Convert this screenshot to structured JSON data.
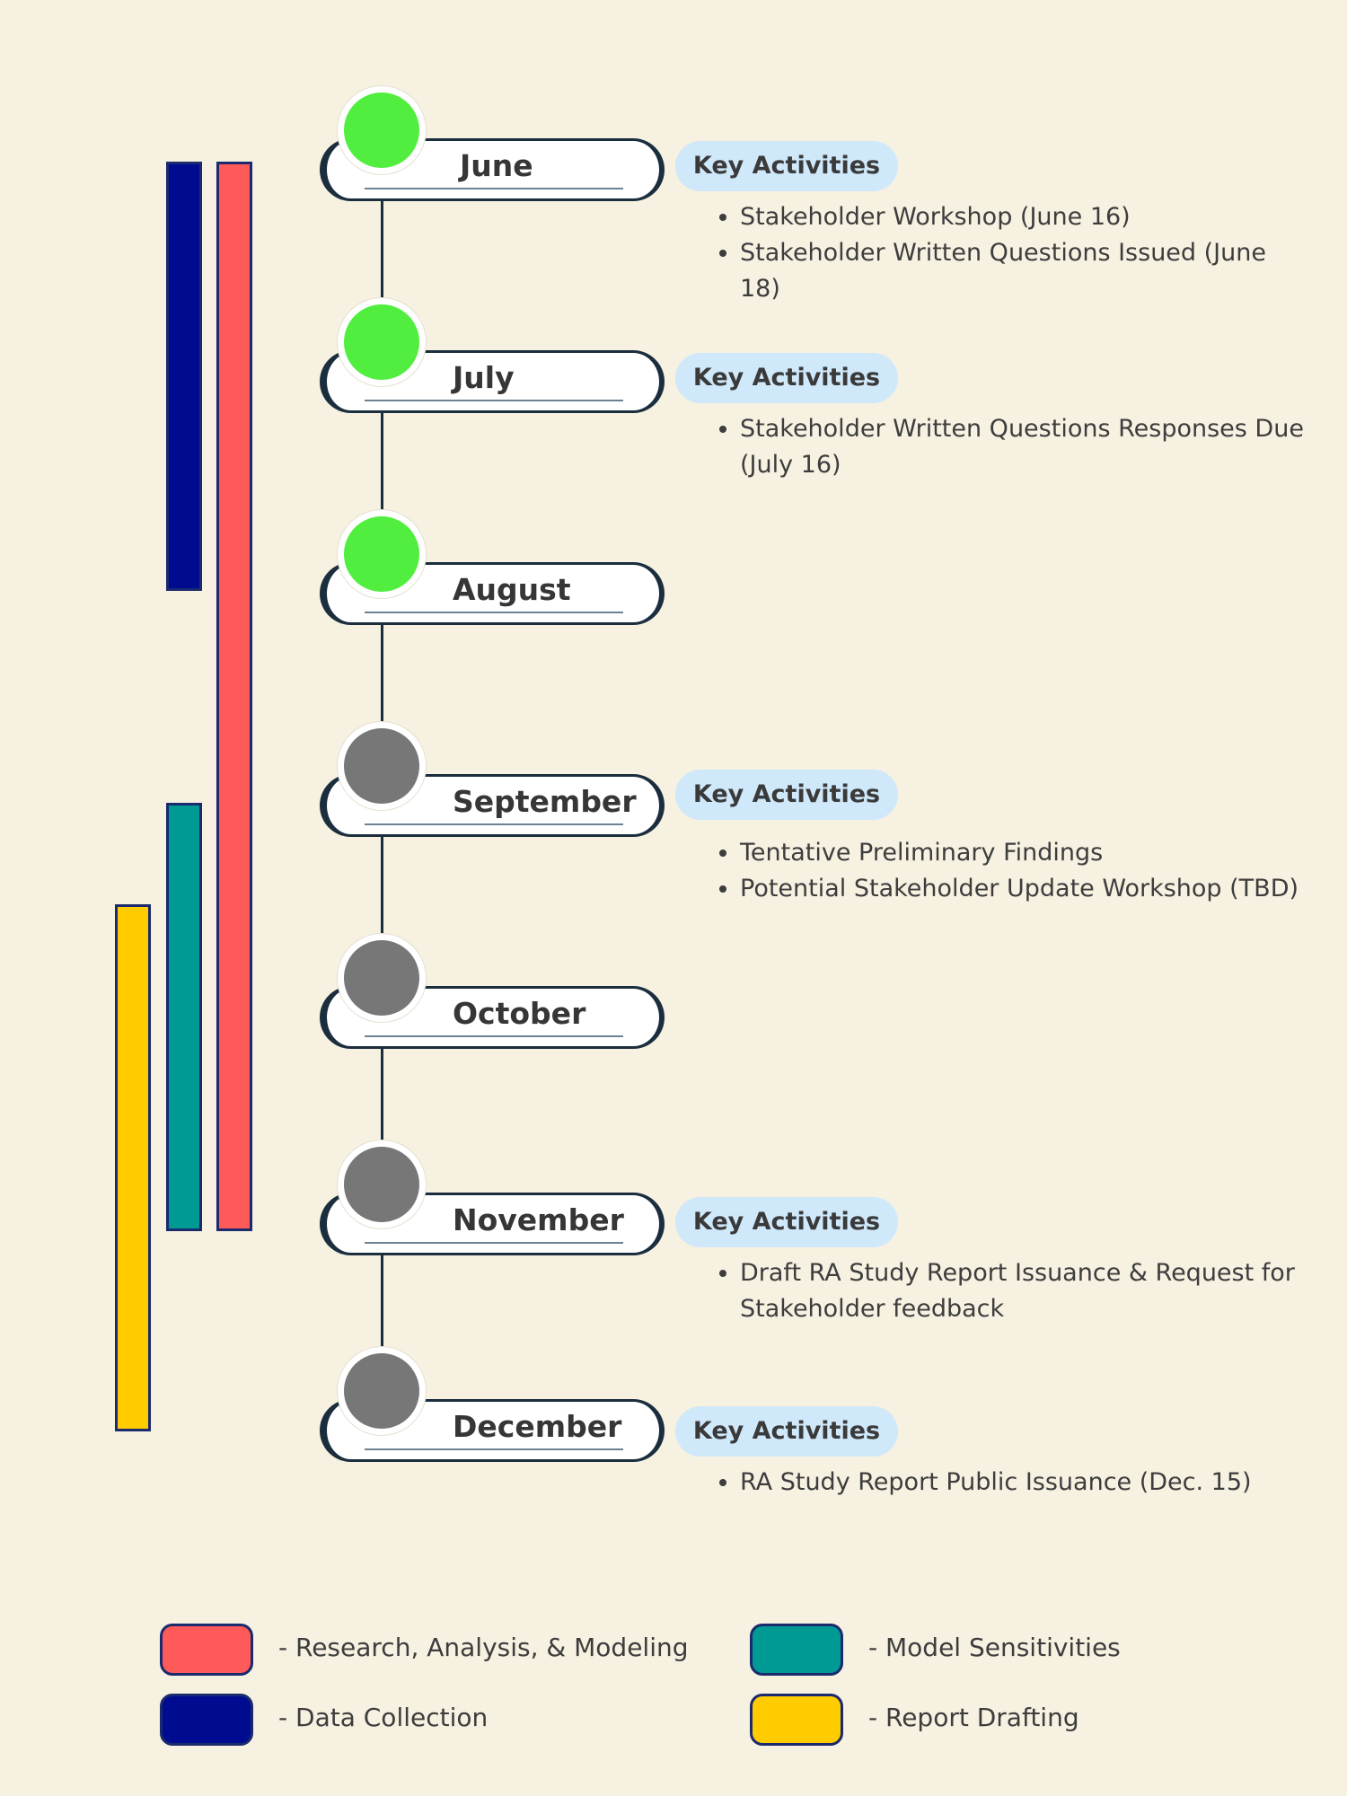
{
  "colors": {
    "research": "#ff5a5a",
    "data_collection": "#000c90",
    "model_sensitivities": "#009a94",
    "report_drafting": "#ffcc00",
    "done": "#52ee3f",
    "upcoming": "#777777",
    "key_activities_bg": "#cfe8fa",
    "background": "#f7f1e1"
  },
  "months": [
    {
      "name": "June",
      "status": "done",
      "key_activities_label": "Key Activities",
      "activities": [
        "Stakeholder Workshop (June 16)",
        "Stakeholder Written Questions Issued (June 18)"
      ]
    },
    {
      "name": "July",
      "status": "done",
      "key_activities_label": "Key Activities",
      "activities": [
        "Stakeholder Written Questions Responses Due (July 16)"
      ]
    },
    {
      "name": "August",
      "status": "done",
      "key_activities_label": "",
      "activities": []
    },
    {
      "name": "September",
      "status": "upcoming",
      "key_activities_label": "Key Activities",
      "activities": [
        "Tentative Preliminary Findings",
        "Potential Stakeholder Update Workshop (TBD)"
      ]
    },
    {
      "name": "October",
      "status": "upcoming",
      "key_activities_label": "",
      "activities": []
    },
    {
      "name": "November",
      "status": "upcoming",
      "key_activities_label": "Key Activities",
      "activities": [
        "Draft RA Study Report Issuance & Request for Stakeholder feedback"
      ]
    },
    {
      "name": "December",
      "status": "upcoming",
      "key_activities_label": "Key Activities",
      "activities": [
        "RA Study Report Public Issuance (Dec. 15)"
      ]
    }
  ],
  "phases": [
    {
      "key": "data_collection",
      "start_month": "June",
      "end_month": "August"
    },
    {
      "key": "research",
      "start_month": "June",
      "end_month": "November"
    },
    {
      "key": "model_sensitivities",
      "start_month": "September",
      "end_month": "November"
    },
    {
      "key": "report_drafting",
      "start_month": "September",
      "end_month": "December"
    }
  ],
  "legend": [
    {
      "key": "research",
      "label": "- Research, Analysis, & Modeling"
    },
    {
      "key": "model_sensitivities",
      "label": "- Model Sensitivities"
    },
    {
      "key": "data_collection",
      "label": "- Data Collection"
    },
    {
      "key": "report_drafting",
      "label": "- Report Drafting"
    }
  ]
}
